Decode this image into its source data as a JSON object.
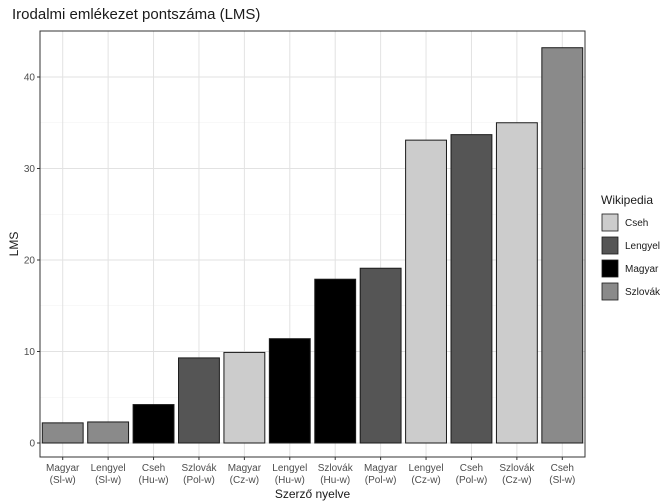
{
  "chart_data": {
    "type": "bar",
    "title": "Irodalmi emlékezet pontszáma (LMS)",
    "xlabel": "Szerző nyelve",
    "ylabel": "LMS",
    "ylim": [
      0,
      45
    ],
    "y_ticks": [
      0,
      10,
      20,
      30,
      40
    ],
    "grid": true,
    "legend_title": "Wikipedia",
    "legend_position": "right",
    "legend": [
      {
        "name": "Cseh",
        "color": "#cccccc"
      },
      {
        "name": "Lengyel",
        "color": "#555555"
      },
      {
        "name": "Magyar",
        "color": "#000000"
      },
      {
        "name": "Szlovák",
        "color": "#8a8a8a"
      }
    ],
    "bars": [
      {
        "line1": "Magyar",
        "line2": "(Sl-w)",
        "value": 2.2,
        "group": "Szlovák"
      },
      {
        "line1": "Lengyel",
        "line2": "(Sl-w)",
        "value": 2.3,
        "group": "Szlovák"
      },
      {
        "line1": "Cseh",
        "line2": "(Hu-w)",
        "value": 4.2,
        "group": "Magyar"
      },
      {
        "line1": "Szlovák",
        "line2": "(Pol-w)",
        "value": 9.3,
        "group": "Lengyel"
      },
      {
        "line1": "Magyar",
        "line2": "(Cz-w)",
        "value": 9.9,
        "group": "Cseh"
      },
      {
        "line1": "Lengyel",
        "line2": "(Hu-w)",
        "value": 11.4,
        "group": "Magyar"
      },
      {
        "line1": "Szlovák",
        "line2": "(Hu-w)",
        "value": 17.9,
        "group": "Magyar"
      },
      {
        "line1": "Magyar",
        "line2": "(Pol-w)",
        "value": 19.1,
        "group": "Lengyel"
      },
      {
        "line1": "Lengyel",
        "line2": "(Cz-w)",
        "value": 33.1,
        "group": "Cseh"
      },
      {
        "line1": "Cseh",
        "line2": "(Pol-w)",
        "value": 33.7,
        "group": "Lengyel"
      },
      {
        "line1": "Szlovák",
        "line2": "(Cz-w)",
        "value": 35.0,
        "group": "Cseh"
      },
      {
        "line1": "Cseh",
        "line2": "(Sl-w)",
        "value": 43.2,
        "group": "Szlovák"
      }
    ]
  }
}
